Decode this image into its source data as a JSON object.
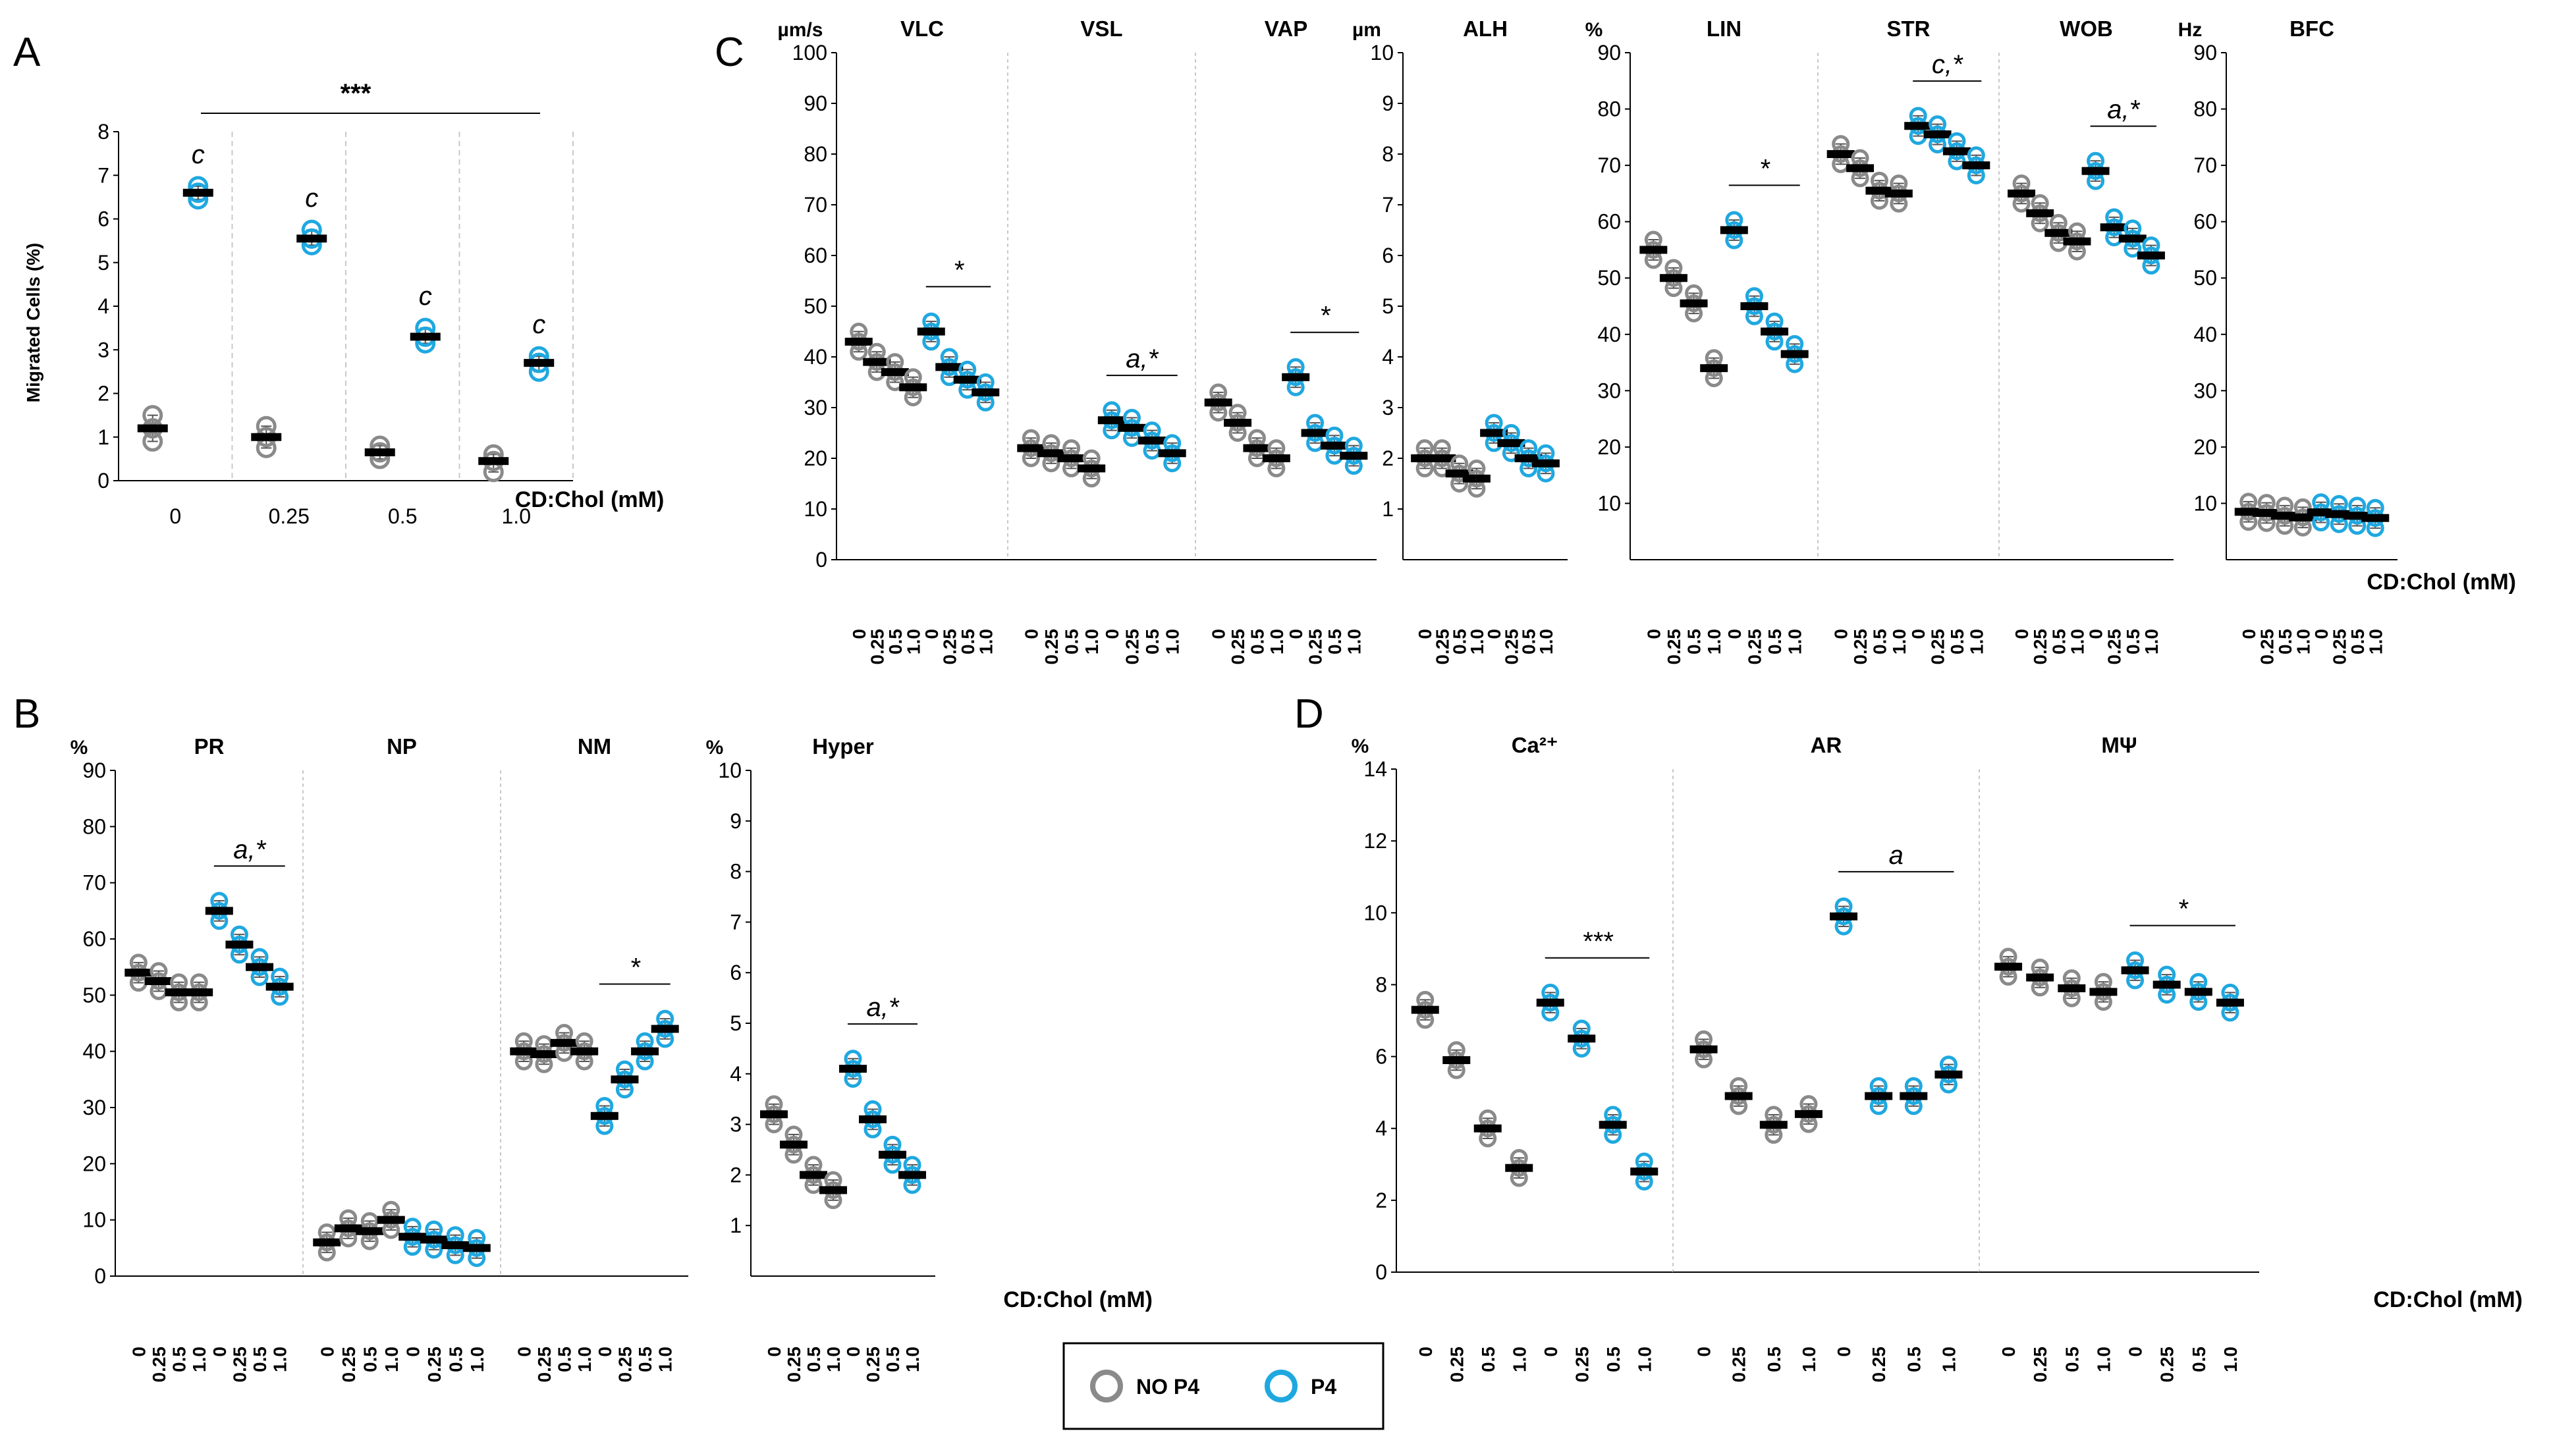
{
  "colors": {
    "nop4": "#8a8a8a",
    "p4": "#1fa8e0",
    "axis": "#000000",
    "divider": "#c8c8c8"
  },
  "legend": {
    "nop4": "NO P4",
    "p4": "P4"
  },
  "chart_data": [
    {
      "panel": "A",
      "type": "scatter",
      "ylabel": "Migrated Cells (%)",
      "xlabel": "CD:Chol (mM)",
      "ylim": [
        0,
        8
      ],
      "yticks": [
        "0",
        "1",
        "2",
        "3",
        "4",
        "5",
        "6",
        "7",
        "8"
      ],
      "categories": [
        "0",
        "0.25",
        "0.5",
        "1.0"
      ],
      "series": [
        {
          "name": "NO P4",
          "means": [
            1.2,
            1.0,
            0.65,
            0.45
          ],
          "points": [
            [
              0.9,
              1.2,
              1.5
            ],
            [
              0.75,
              1.0,
              1.25
            ],
            [
              0.5,
              0.65,
              0.8
            ],
            [
              0.2,
              0.45,
              0.6
            ]
          ]
        },
        {
          "name": "P4",
          "means": [
            6.6,
            5.55,
            3.3,
            2.7
          ],
          "points": [
            [
              6.45,
              6.6,
              6.75
            ],
            [
              5.4,
              5.55,
              5.75
            ],
            [
              3.15,
              3.3,
              3.5
            ],
            [
              2.5,
              2.7,
              2.85
            ]
          ]
        }
      ],
      "labels": [
        "c",
        "c",
        "c",
        "c"
      ],
      "significance": "***"
    },
    {
      "panel": "C",
      "type": "scatter",
      "xlabel": "CD:Chol (mM)",
      "tick_groups": [
        {
          "unit": "µm/s",
          "ylim": [
            0,
            100
          ],
          "yticks": [
            "0",
            "10",
            "20",
            "30",
            "40",
            "50",
            "60",
            "70",
            "80",
            "90",
            "100"
          ]
        },
        {
          "unit": "µm",
          "ylim": [
            0,
            10
          ],
          "yticks": [
            "1",
            "2",
            "3",
            "4",
            "5",
            "6",
            "7",
            "8",
            "9",
            "10"
          ]
        },
        {
          "unit": "%",
          "ylim": [
            0,
            90
          ],
          "yticks": [
            "10",
            "20",
            "30",
            "40",
            "50",
            "60",
            "70",
            "80",
            "90"
          ]
        },
        {
          "unit": "Hz",
          "ylim": [
            0,
            90
          ],
          "yticks": [
            "10",
            "20",
            "30",
            "40",
            "50",
            "60",
            "70",
            "80",
            "90"
          ]
        }
      ],
      "categories": [
        "0",
        "0.25",
        "0.5",
        "1.0",
        "0",
        "0.25",
        "0.5",
        "1.0"
      ],
      "subplots": [
        {
          "title": "VLC",
          "nop4": [
            43,
            39,
            37,
            34
          ],
          "p4": [
            45,
            38,
            35.5,
            33
          ],
          "sig": "*"
        },
        {
          "title": "VSL",
          "nop4": [
            22,
            21,
            20,
            18
          ],
          "p4": [
            27.5,
            26,
            23.5,
            21
          ],
          "sig": "a,*"
        },
        {
          "title": "VAP",
          "nop4": [
            31,
            27,
            22,
            20
          ],
          "p4": [
            36,
            25,
            22.5,
            20.5
          ],
          "sig": "*"
        },
        {
          "title": "ALH",
          "nop4": [
            2,
            2,
            1.7,
            1.6
          ],
          "p4": [
            2.5,
            2.3,
            2.0,
            1.9
          ],
          "sig": ""
        },
        {
          "title": "LIN",
          "nop4": [
            55,
            50,
            45.5,
            34
          ],
          "p4": [
            58.5,
            45,
            40.5,
            36.5
          ],
          "sig": "*"
        },
        {
          "title": "STR",
          "nop4": [
            72,
            69.5,
            65.5,
            65
          ],
          "p4": [
            77,
            75.5,
            72.5,
            70
          ],
          "sig": "c,*"
        },
        {
          "title": "WOB",
          "nop4": [
            65,
            61.5,
            58,
            56.5
          ],
          "p4": [
            69,
            59,
            57,
            54
          ],
          "sig": "a,*"
        },
        {
          "title": "BFC",
          "nop4": [
            8.5,
            8.3,
            7.8,
            7.5
          ],
          "p4": [
            8.4,
            8.1,
            7.8,
            7.4
          ],
          "sig": ""
        }
      ]
    },
    {
      "panel": "B",
      "type": "scatter",
      "xlabel": "CD:Chol (mM)",
      "tick_groups": [
        {
          "unit": "%",
          "ylim": [
            0,
            90
          ],
          "yticks": [
            "0",
            "10",
            "20",
            "30",
            "40",
            "50",
            "60",
            "70",
            "80",
            "90"
          ]
        },
        {
          "unit": "%",
          "ylim": [
            0,
            10
          ],
          "yticks": [
            "1",
            "2",
            "3",
            "4",
            "5",
            "6",
            "7",
            "8",
            "9",
            "10"
          ]
        }
      ],
      "categories": [
        "0",
        "0.25",
        "0.5",
        "1.0",
        "0",
        "0.25",
        "0.5",
        "1.0"
      ],
      "subplots": [
        {
          "title": "PR",
          "nop4": [
            54,
            52.5,
            50.5,
            50.5
          ],
          "p4": [
            65,
            59,
            55,
            51.5
          ],
          "sig": "a,*"
        },
        {
          "title": "NP",
          "nop4": [
            6,
            8.5,
            8,
            10
          ],
          "p4": [
            7,
            6.5,
            5.5,
            5
          ],
          "sig": ""
        },
        {
          "title": "NM",
          "nop4": [
            40,
            39.5,
            41.5,
            40
          ],
          "p4": [
            28.5,
            35,
            40,
            44
          ],
          "sig": "*"
        },
        {
          "title": "Hyper",
          "nop4": [
            3.2,
            2.6,
            2.0,
            1.7
          ],
          "p4": [
            4.1,
            3.1,
            2.4,
            2.0
          ],
          "sig": "a,*"
        }
      ]
    },
    {
      "panel": "D",
      "type": "scatter",
      "xlabel": "CD:Chol (mM)",
      "unit": "%",
      "ylim": [
        0,
        14
      ],
      "yticks": [
        "0",
        "2",
        "4",
        "6",
        "8",
        "10",
        "12",
        "14"
      ],
      "categories": [
        "0",
        "0.25",
        "0.5",
        "1.0",
        "0",
        "0.25",
        "0.5",
        "1.0"
      ],
      "subplots": [
        {
          "title": "Ca²⁺",
          "nop4": [
            7.3,
            5.9,
            4.0,
            2.9
          ],
          "p4": [
            7.5,
            6.5,
            4.1,
            2.8
          ],
          "sig": "***"
        },
        {
          "title": "AR",
          "nop4": [
            6.2,
            4.9,
            4.1,
            4.4
          ],
          "p4": [
            9.9,
            4.9,
            4.9,
            5.5
          ],
          "sig": "a"
        },
        {
          "title": "MΨ",
          "nop4": [
            8.5,
            8.2,
            7.9,
            7.8
          ],
          "p4": [
            8.4,
            8.0,
            7.8,
            7.5
          ],
          "sig": "*"
        }
      ]
    }
  ]
}
